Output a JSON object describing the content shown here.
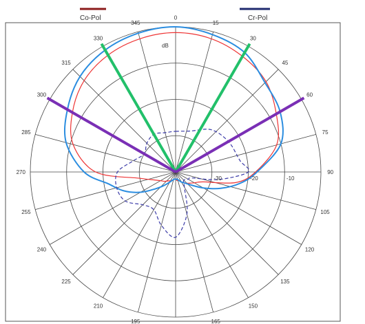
{
  "chart_data": {
    "type": "polar",
    "unit_label": "dB",
    "angle_ticks": [
      "0",
      "15",
      "30",
      "45",
      "60",
      "75",
      "90",
      "105",
      "120",
      "135",
      "150",
      "165",
      "180",
      "195",
      "210",
      "225",
      "240",
      "255",
      "270",
      "285",
      "300",
      "315",
      "330",
      "345"
    ],
    "radial_labels": [
      "-30",
      "-20",
      "-10"
    ],
    "legend": [
      {
        "name": "Co-Pol",
        "color": "#8b1a1a"
      },
      {
        "name": "Cr-Pol",
        "color": "#1f2a6e"
      }
    ],
    "series": [
      {
        "name": "Co-Pol (red)",
        "color": "#ee3333",
        "angles_deg": [
          0,
          15,
          30,
          45,
          60,
          75,
          90,
          100,
          110,
          120,
          130,
          140,
          150,
          160,
          170,
          180,
          190,
          200,
          210,
          220,
          230,
          240,
          250,
          260,
          270,
          285,
          300,
          315,
          330,
          345
        ],
        "radius_fraction": [
          0.96,
          0.95,
          0.92,
          0.88,
          0.8,
          0.72,
          0.55,
          0.42,
          0.2,
          0.15,
          0.12,
          0.1,
          0.08,
          0.06,
          0.06,
          0.05,
          0.05,
          0.06,
          0.07,
          0.08,
          0.1,
          0.12,
          0.16,
          0.25,
          0.55,
          0.73,
          0.82,
          0.89,
          0.93,
          0.95
        ]
      },
      {
        "name": "Co-Pol (blue)",
        "color": "#2b8de0",
        "angles_deg": [
          0,
          15,
          30,
          45,
          60,
          75,
          90,
          100,
          110,
          120,
          130,
          140,
          150,
          160,
          170,
          180,
          190,
          200,
          210,
          220,
          230,
          240,
          250,
          260,
          270,
          285,
          300,
          315,
          330,
          345
        ],
        "radius_fraction": [
          1.0,
          0.98,
          0.95,
          0.87,
          0.83,
          0.75,
          0.56,
          0.45,
          0.33,
          0.22,
          0.14,
          0.1,
          0.08,
          0.06,
          0.05,
          0.05,
          0.05,
          0.06,
          0.08,
          0.12,
          0.18,
          0.28,
          0.38,
          0.47,
          0.63,
          0.78,
          0.86,
          0.93,
          0.97,
          0.99
        ]
      },
      {
        "name": "Cr-Pol",
        "color": "#3b3ba8",
        "dashed": true,
        "angles_deg": [
          0,
          20,
          40,
          60,
          80,
          90,
          100,
          110,
          120,
          135,
          150,
          165,
          180,
          195,
          210,
          225,
          240,
          255,
          270,
          285,
          300,
          315,
          330,
          345
        ],
        "radius_fraction": [
          0.28,
          0.3,
          0.38,
          0.42,
          0.45,
          0.5,
          0.3,
          0.12,
          0.1,
          0.08,
          0.12,
          0.3,
          0.45,
          0.38,
          0.3,
          0.32,
          0.4,
          0.42,
          0.4,
          0.3,
          0.25,
          0.28,
          0.3,
          0.28
        ]
      }
    ],
    "overlay_lines": [
      {
        "name": "green",
        "color": "#22c06a",
        "angles_deg": [
          30,
          330
        ]
      },
      {
        "name": "purple",
        "color": "#7a2fb5",
        "angles_deg": [
          60,
          300
        ]
      }
    ]
  }
}
